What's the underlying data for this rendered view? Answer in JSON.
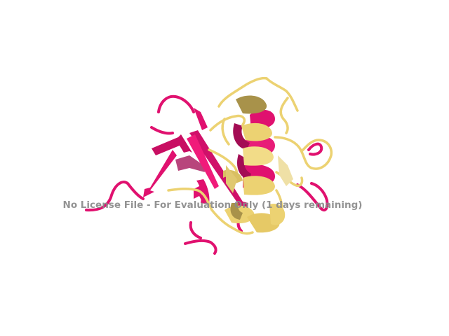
{
  "viewer": {
    "watermark": "No License File - For Evaluation Only (1 days remaining)"
  },
  "molecule": {
    "representation": "cartoon",
    "chains": [
      {
        "color": "#e0116f"
      },
      {
        "color": "#ecd272"
      }
    ]
  }
}
